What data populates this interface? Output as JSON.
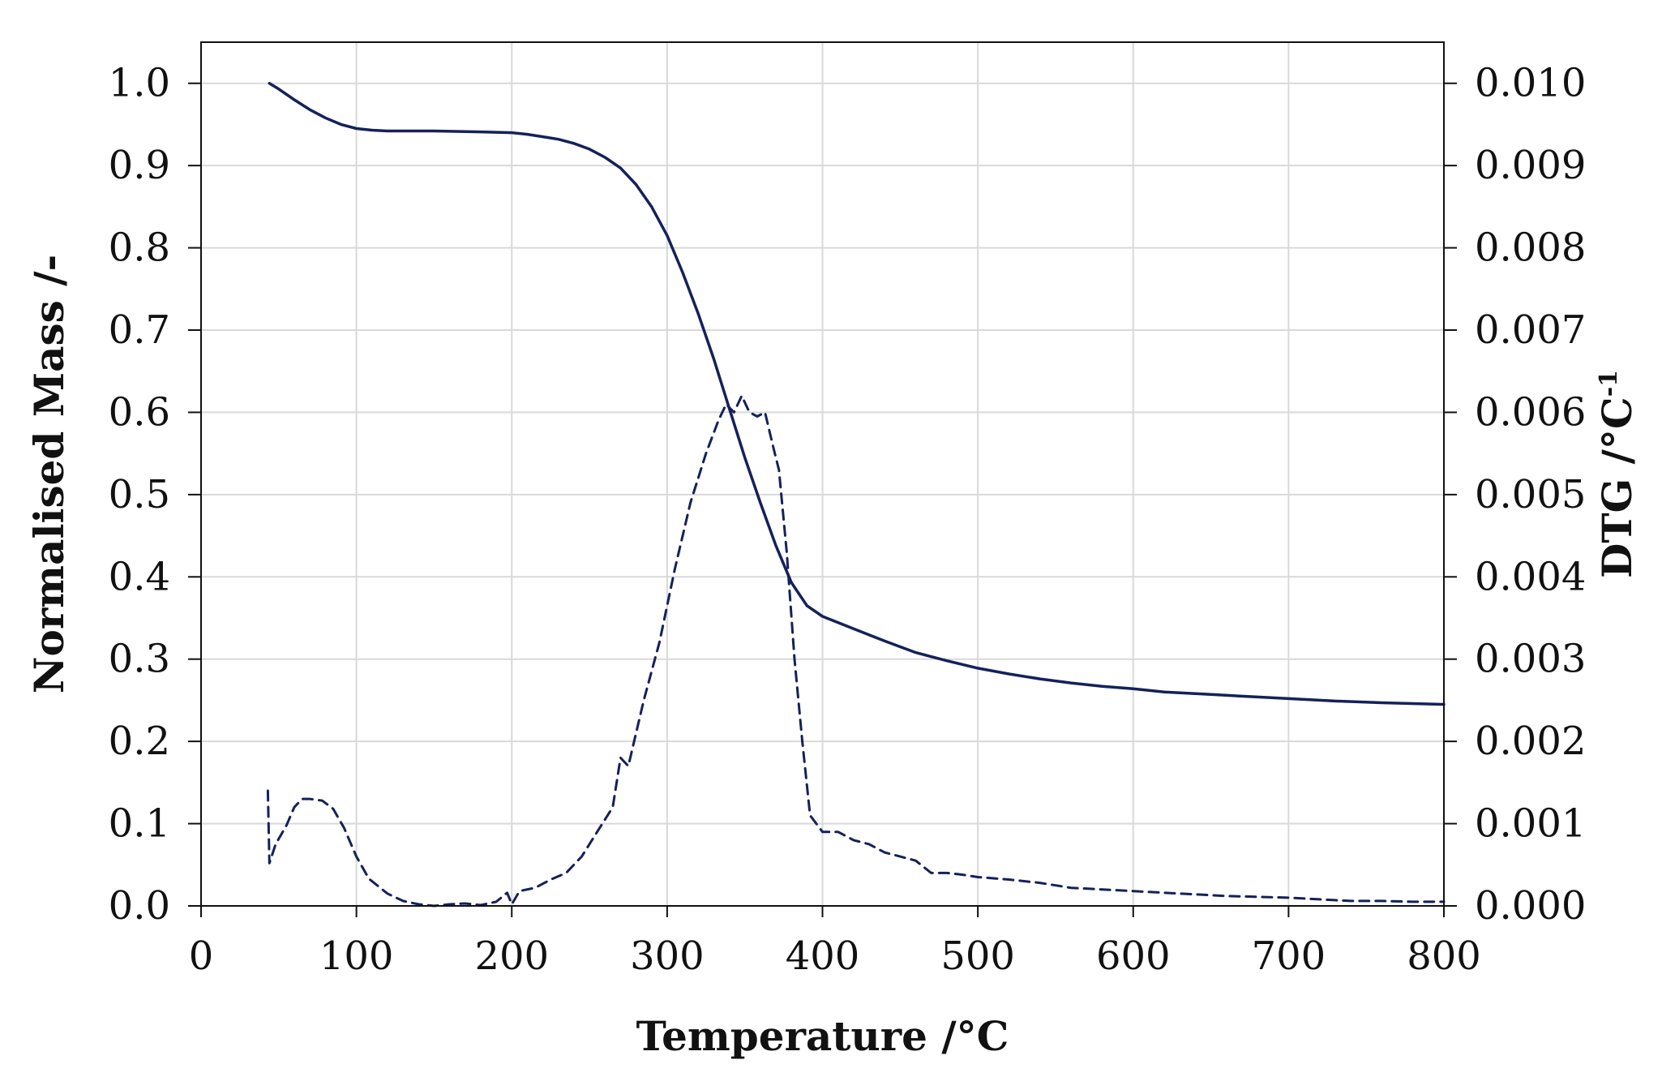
{
  "chart_data": {
    "type": "line",
    "title": "",
    "xlabel": "Temperature /°C",
    "ylabel_left": "Normalised Mass /-",
    "ylabel_right_main": "DTG  /°C",
    "ylabel_right_sup": "-1",
    "xlim": [
      0,
      800
    ],
    "ylim_left": [
      0,
      1.05
    ],
    "ylim_right": [
      0,
      0.0105
    ],
    "x_ticks": [
      0,
      100,
      200,
      300,
      400,
      500,
      600,
      700,
      800
    ],
    "x_tick_labels": [
      "0",
      "100",
      "200",
      "300",
      "400",
      "500",
      "600",
      "700",
      "800"
    ],
    "y_left_ticks": [
      0.0,
      0.1,
      0.2,
      0.3,
      0.4,
      0.5,
      0.6,
      0.7,
      0.8,
      0.9,
      1.0
    ],
    "y_left_tick_labels": [
      "0.0",
      "0.1",
      "0.2",
      "0.3",
      "0.4",
      "0.5",
      "0.6",
      "0.7",
      "0.8",
      "0.9",
      "1.0"
    ],
    "y_right_ticks": [
      0.0,
      0.001,
      0.002,
      0.003,
      0.004,
      0.005,
      0.006,
      0.007,
      0.008,
      0.009,
      0.01
    ],
    "y_right_tick_labels": [
      "0.000",
      "0.001",
      "0.002",
      "0.003",
      "0.004",
      "0.005",
      "0.006",
      "0.007",
      "0.008",
      "0.009",
      "0.010"
    ],
    "grid": true,
    "line_color": "#14215a",
    "grid_color": "#d9d9d9",
    "series": [
      {
        "axis": "left",
        "style": "solid",
        "points": [
          [
            44,
            1.0
          ],
          [
            50,
            0.993
          ],
          [
            60,
            0.98
          ],
          [
            70,
            0.968
          ],
          [
            80,
            0.958
          ],
          [
            90,
            0.95
          ],
          [
            100,
            0.945
          ],
          [
            110,
            0.943
          ],
          [
            120,
            0.942
          ],
          [
            150,
            0.942
          ],
          [
            180,
            0.941
          ],
          [
            200,
            0.94
          ],
          [
            210,
            0.938
          ],
          [
            220,
            0.935
          ],
          [
            230,
            0.932
          ],
          [
            240,
            0.927
          ],
          [
            250,
            0.92
          ],
          [
            260,
            0.91
          ],
          [
            270,
            0.897
          ],
          [
            280,
            0.877
          ],
          [
            290,
            0.85
          ],
          [
            300,
            0.815
          ],
          [
            310,
            0.77
          ],
          [
            320,
            0.72
          ],
          [
            330,
            0.665
          ],
          [
            340,
            0.605
          ],
          [
            350,
            0.545
          ],
          [
            360,
            0.49
          ],
          [
            370,
            0.438
          ],
          [
            380,
            0.393
          ],
          [
            390,
            0.365
          ],
          [
            400,
            0.352
          ],
          [
            420,
            0.337
          ],
          [
            440,
            0.322
          ],
          [
            460,
            0.308
          ],
          [
            480,
            0.298
          ],
          [
            500,
            0.289
          ],
          [
            520,
            0.282
          ],
          [
            540,
            0.276
          ],
          [
            560,
            0.271
          ],
          [
            580,
            0.267
          ],
          [
            600,
            0.264
          ],
          [
            620,
            0.26
          ],
          [
            650,
            0.257
          ],
          [
            680,
            0.254
          ],
          [
            700,
            0.252
          ],
          [
            730,
            0.249
          ],
          [
            760,
            0.247
          ],
          [
            800,
            0.245
          ]
        ]
      },
      {
        "axis": "right",
        "style": "dashed",
        "points": [
          [
            43,
            0.0014
          ],
          [
            44,
            0.00052
          ],
          [
            48,
            0.00075
          ],
          [
            55,
            0.00098
          ],
          [
            60,
            0.0012
          ],
          [
            65,
            0.0013
          ],
          [
            70,
            0.0013
          ],
          [
            78,
            0.00128
          ],
          [
            85,
            0.00118
          ],
          [
            92,
            0.00095
          ],
          [
            100,
            0.0006
          ],
          [
            108,
            0.00033
          ],
          [
            120,
            0.00015
          ],
          [
            130,
            6e-05
          ],
          [
            140,
            2e-05
          ],
          [
            150,
            0.0
          ],
          [
            160,
            2e-05
          ],
          [
            170,
            3e-05
          ],
          [
            180,
            1e-05
          ],
          [
            190,
            5e-05
          ],
          [
            197,
            0.00016
          ],
          [
            200,
            2e-05
          ],
          [
            205,
            0.00018
          ],
          [
            215,
            0.00022
          ],
          [
            225,
            0.00032
          ],
          [
            235,
            0.0004
          ],
          [
            245,
            0.0006
          ],
          [
            255,
            0.0009
          ],
          [
            265,
            0.0012
          ],
          [
            270,
            0.0018
          ],
          [
            275,
            0.0017
          ],
          [
            285,
            0.0025
          ],
          [
            295,
            0.0032
          ],
          [
            305,
            0.0041
          ],
          [
            315,
            0.0049
          ],
          [
            325,
            0.0055
          ],
          [
            333,
            0.0059
          ],
          [
            338,
            0.0061
          ],
          [
            343,
            0.006
          ],
          [
            348,
            0.0062
          ],
          [
            353,
            0.006
          ],
          [
            358,
            0.00595
          ],
          [
            363,
            0.006
          ],
          [
            368,
            0.0056
          ],
          [
            372,
            0.0053
          ],
          [
            377,
            0.0043
          ],
          [
            382,
            0.003
          ],
          [
            387,
            0.002
          ],
          [
            392,
            0.0011
          ],
          [
            400,
            0.0009
          ],
          [
            410,
            0.0009
          ],
          [
            420,
            0.0008
          ],
          [
            430,
            0.00075
          ],
          [
            440,
            0.00065
          ],
          [
            450,
            0.0006
          ],
          [
            460,
            0.00055
          ],
          [
            470,
            0.0004
          ],
          [
            480,
            0.0004
          ],
          [
            490,
            0.00038
          ],
          [
            500,
            0.00035
          ],
          [
            520,
            0.00032
          ],
          [
            540,
            0.00028
          ],
          [
            560,
            0.00022
          ],
          [
            580,
            0.0002
          ],
          [
            600,
            0.00018
          ],
          [
            620,
            0.00016
          ],
          [
            640,
            0.00014
          ],
          [
            660,
            0.00012
          ],
          [
            680,
            0.00011
          ],
          [
            700,
            0.0001
          ],
          [
            720,
            8e-05
          ],
          [
            740,
            6e-05
          ],
          [
            760,
            6e-05
          ],
          [
            780,
            5e-05
          ],
          [
            800,
            5e-05
          ]
        ]
      }
    ]
  }
}
